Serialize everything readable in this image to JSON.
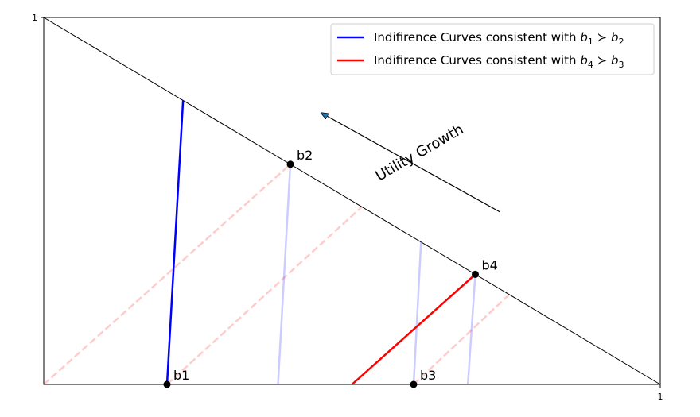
{
  "chart_data": {
    "type": "line",
    "xlim": [
      0,
      1
    ],
    "ylim": [
      0,
      1
    ],
    "x_ticks": [
      "1"
    ],
    "y_ticks": [
      "1"
    ],
    "budget_line": [
      [
        0,
        1
      ],
      [
        1,
        0
      ]
    ],
    "points": [
      {
        "name": "b1",
        "x": 0.2,
        "y": 0.0
      },
      {
        "name": "b2",
        "x": 0.4,
        "y": 0.6
      },
      {
        "name": "b3",
        "x": 0.6,
        "y": 0.0
      },
      {
        "name": "b4",
        "x": 0.7,
        "y": 0.3
      }
    ],
    "series": [
      {
        "name": "Indifirence Curves consistent with b1 > b2",
        "legend_prefix": "Indifirence Curves consistent with ",
        "legend_expr": [
          "b",
          "1",
          " ≻ ",
          "b",
          "2"
        ],
        "color": "#0000ff",
        "style": "solid",
        "alpha": 1,
        "segments": [
          [
            [
              0.2,
              0.0
            ],
            [
              0.226,
              0.774
            ]
          ]
        ]
      },
      {
        "name": "Indifirence Curves consistent with b4 > b3",
        "legend_prefix": "Indifirence Curves consistent with ",
        "legend_expr": [
          "b",
          "4",
          " ≻ ",
          "b",
          "3"
        ],
        "color": "#ff0000",
        "style": "solid",
        "alpha": 1,
        "segments": [
          [
            [
              0.5,
              0.0
            ],
            [
              0.7,
              0.3
            ]
          ]
        ]
      },
      {
        "name": "faint-blue",
        "color": "#0000ff",
        "style": "solid",
        "alpha": 0.2,
        "segments": [
          [
            [
              0.38,
              0.0
            ],
            [
              0.4,
              0.6
            ]
          ],
          [
            [
              0.6,
              0.0
            ],
            [
              0.612,
              0.388
            ]
          ],
          [
            [
              0.688,
              0.0
            ],
            [
              0.7,
              0.3
            ]
          ]
        ]
      },
      {
        "name": "faint-red",
        "color": "#ff0000",
        "style": "dashed",
        "alpha": 0.2,
        "segments": [
          [
            [
              0.0,
              0.0
            ],
            [
              0.4,
              0.6
            ]
          ],
          [
            [
              0.2,
              0.0
            ],
            [
              0.516,
              0.484
            ]
          ],
          [
            [
              0.6,
              0.0
            ],
            [
              0.755,
              0.245
            ]
          ]
        ]
      }
    ],
    "annotation": {
      "text": "Utility Growth",
      "from": [
        0.74,
        0.47
      ],
      "to": [
        0.45,
        0.74
      ],
      "text_at": [
        0.61,
        0.63
      ],
      "rotation_deg": -30
    },
    "legend_placement": "upper right",
    "grid": false
  }
}
